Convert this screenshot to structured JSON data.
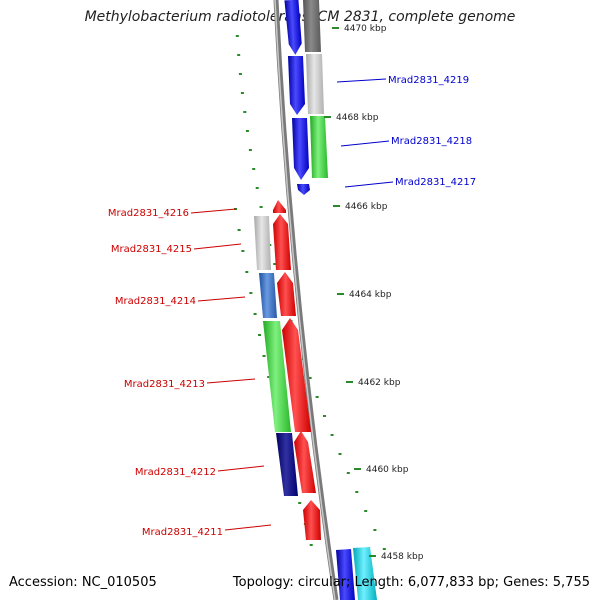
{
  "title": "Methylobacterium radiotolerans JCM 2831, complete genome",
  "footer": {
    "accession": "Accession: NC_010505",
    "summary": "Topology: circular; Length: 6,077,833 bp; Genes: 5,755"
  },
  "colors": {
    "forward_label": "#0000cc",
    "reverse_label": "#cc0000",
    "tick": "#2a8a2a",
    "backbone": "#888888"
  },
  "ticks": [
    "4470 kbp",
    "4468 kbp",
    "4466 kbp",
    "4464 kbp",
    "4462 kbp",
    "4460 kbp",
    "4458 kbp"
  ],
  "forward_labels": [
    "Mrad2831_4219",
    "Mrad2831_4218",
    "Mrad2831_4217"
  ],
  "reverse_labels": [
    "Mrad2831_4216",
    "Mrad2831_4215",
    "Mrad2831_4214",
    "Mrad2831_4213",
    "Mrad2831_4212",
    "Mrad2831_4211"
  ]
}
